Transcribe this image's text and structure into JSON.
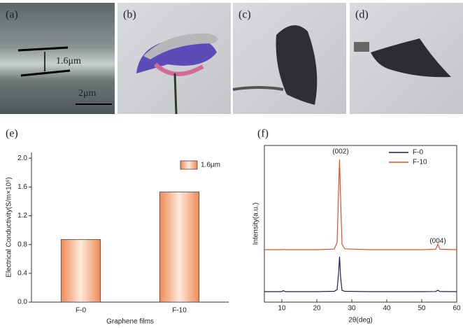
{
  "photos": [
    {
      "label": "(a)",
      "annotations": [
        "1.6μm",
        "2μm"
      ]
    },
    {
      "label": "(b)"
    },
    {
      "label": "(c)"
    },
    {
      "label": "(d)"
    }
  ],
  "chart_data": [
    {
      "type": "bar",
      "panel_label": "(e)",
      "x_label": "Graphene films",
      "y_label": "Electrical Conductivity(S/m×10⁶)",
      "categories": [
        "F-0",
        "F-10"
      ],
      "series": [
        {
          "name": "1.6μm",
          "color": "#f4a37a",
          "values": [
            0.87,
            1.53
          ]
        }
      ],
      "ylim": [
        0,
        2.08
      ],
      "yticks": [
        {
          "value": 0,
          "label": "0.0"
        },
        0.4,
        0.8,
        1.2,
        1.6,
        {
          "value": 2,
          "label": "2.0"
        }
      ],
      "legend": "upper right"
    },
    {
      "type": "line",
      "panel_label": "(f)",
      "x_label": "2θ(deg)",
      "y_label": "Intensity(a.u.)",
      "annotations": [
        "(002)",
        "(004)"
      ],
      "x": [
        5,
        10,
        10.4,
        11,
        20,
        25,
        25.8,
        26.2,
        26.5,
        26.8,
        27.2,
        28,
        35,
        50,
        54,
        54.6,
        55.2,
        60
      ],
      "series": [
        {
          "name": "F-0",
          "color": "#1f1f4f",
          "values": [
            6.7,
            6.7,
            7.3,
            6.7,
            6.7,
            6.9,
            8,
            18,
            29,
            16,
            7.5,
            6.9,
            6.7,
            6.7,
            6.8,
            7.6,
            6.8,
            6.7
          ]
        },
        {
          "name": "F-10",
          "color": "#e2502a",
          "values": [
            33.5,
            33.5,
            33.6,
            33.5,
            33.5,
            33.9,
            38,
            70,
            91,
            66,
            37,
            34,
            33.5,
            33.5,
            33.8,
            37,
            33.8,
            33.5
          ]
        }
      ],
      "xlim": [
        5,
        60
      ],
      "xticks": [
        10,
        20,
        30,
        40,
        50,
        60
      ],
      "ylim": [
        0,
        100
      ],
      "legend": "upper right"
    }
  ]
}
